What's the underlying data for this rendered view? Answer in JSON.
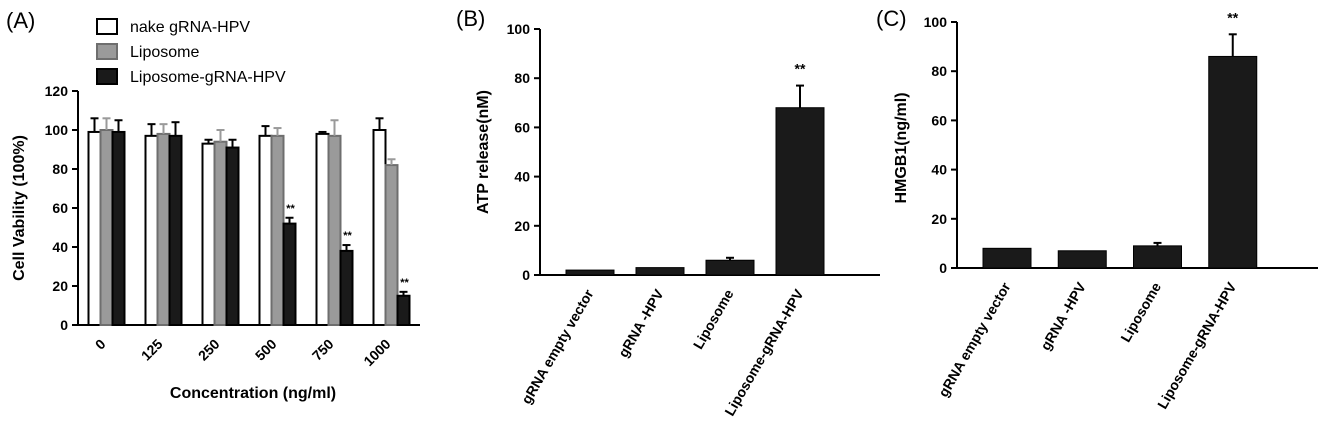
{
  "panels": {
    "a": "(A)",
    "b": "(B)",
    "c": "(C)"
  },
  "colors": {
    "nake": "#ffffff",
    "liposome": "#9a9a9a",
    "liposome_grna": "#1a1a1a",
    "axis": "#000000"
  },
  "chart_data": [
    {
      "type": "bar",
      "panel": "(A)",
      "title": "",
      "xlabel": "Concentration (ng/ml)",
      "ylabel": "Cell Vability (100%)",
      "ylim": [
        0,
        120
      ],
      "yticks": [
        0,
        20,
        40,
        60,
        80,
        100,
        120
      ],
      "categories": [
        "0",
        "125",
        "250",
        "500",
        "750",
        "1000"
      ],
      "legend_position": "top-left",
      "series": [
        {
          "name": "nake gRNA-HPV",
          "color": "#ffffff",
          "values": [
            99,
            97,
            93,
            97,
            98,
            100
          ],
          "errors": [
            7,
            6,
            2,
            5,
            1,
            6
          ],
          "significance": [
            "",
            "",
            "",
            "",
            "",
            ""
          ]
        },
        {
          "name": "Liposome",
          "color": "#9a9a9a",
          "values": [
            100,
            98,
            94,
            97,
            97,
            82
          ],
          "errors": [
            6,
            5,
            6,
            4,
            8,
            3
          ],
          "significance": [
            "",
            "",
            "",
            "",
            "",
            ""
          ]
        },
        {
          "name": "Liposome-gRNA-HPV",
          "color": "#1a1a1a",
          "values": [
            99,
            97,
            91,
            52,
            38,
            15
          ],
          "errors": [
            6,
            7,
            4,
            3,
            3,
            2
          ],
          "significance": [
            "",
            "",
            "",
            "**",
            "**",
            "**"
          ]
        }
      ]
    },
    {
      "type": "bar",
      "panel": "(B)",
      "title": "",
      "xlabel": "",
      "ylabel": "ATP release(nM)",
      "ylim": [
        0,
        100
      ],
      "yticks": [
        0,
        20,
        40,
        60,
        80,
        100
      ],
      "categories": [
        "gRNA empty vector",
        "gRNA -HPV",
        "Liposome",
        "Liposome-gRNA-HPV"
      ],
      "values": [
        2,
        3,
        6,
        68
      ],
      "errors": [
        0.3,
        0.3,
        1,
        9
      ],
      "significance": [
        "",
        "",
        "",
        "**"
      ],
      "color": "#1a1a1a"
    },
    {
      "type": "bar",
      "panel": "(C)",
      "title": "",
      "xlabel": "",
      "ylabel": "HMGB1(ng/ml)",
      "ylim": [
        0,
        100
      ],
      "yticks": [
        0,
        20,
        40,
        60,
        80,
        100
      ],
      "categories": [
        "gRNA empty vector",
        "gRNA -HPV",
        "Liposome",
        "Liposome-gRNA-HPV"
      ],
      "values": [
        8,
        7,
        9,
        86
      ],
      "errors": [
        0.3,
        0.3,
        1.2,
        9
      ],
      "significance": [
        "",
        "",
        "",
        "**"
      ],
      "color": "#1a1a1a"
    }
  ]
}
